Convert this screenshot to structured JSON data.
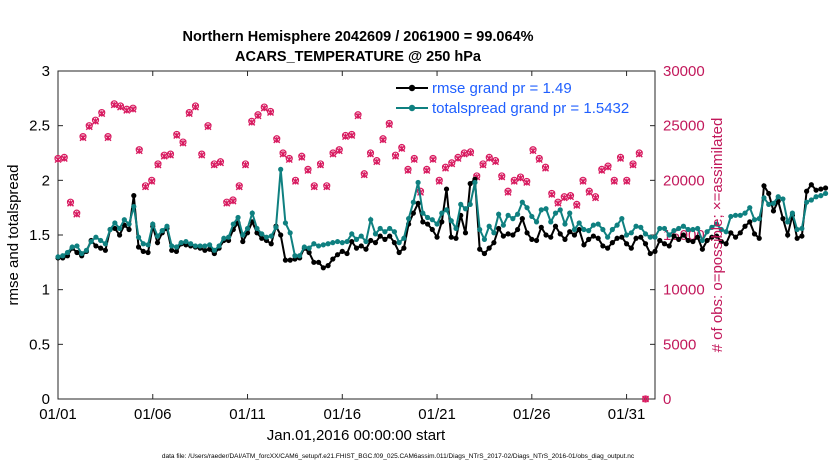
{
  "chart_data": {
    "type": "line",
    "title": [
      "Northern Hemisphere 2042609 / 2061900 = 99.064%",
      "ACARS_TEMPERATURE @ 250 hPa"
    ],
    "xlabel": "Jan.01,2016 00:00:00 start",
    "ylabel": "rmse and totalspread",
    "ylabel_right": "# of obs: o=possible; ×=assimilated",
    "footer": "data file: /Users/raeder/DAI/ATM_forcXX/CAM6_setup/f.e21.FHIST_BGC.f09_025.CAM6assim.011/Diags_NTrS_2017-02/Diags_NTrS_2016-01/obs_diag_output.nc",
    "xlim": [
      0,
      31.5
    ],
    "ylim": [
      0,
      3
    ],
    "ylim_right": [
      0,
      30000
    ],
    "x_ticks": [
      0,
      5,
      10,
      15,
      20,
      25,
      30
    ],
    "x_tick_labels": [
      "01/01",
      "01/06",
      "01/11",
      "01/16",
      "01/21",
      "01/26",
      "01/31"
    ],
    "y_ticks": [
      "0",
      "0.5",
      "1",
      "1.5",
      "2",
      "2.5",
      "3"
    ],
    "y_ticks_right": [
      "0",
      "5000",
      "10000",
      "15000",
      "20000",
      "25000",
      "30000"
    ],
    "x_step_days": 0.25,
    "series": [
      {
        "name": "rmse grand pr = 1.49",
        "color": "#000000",
        "values": [
          1.29,
          1.29,
          1.31,
          1.38,
          1.34,
          1.31,
          1.35,
          1.45,
          1.4,
          1.38,
          1.36,
          1.55,
          1.56,
          1.5,
          1.59,
          1.55,
          1.86,
          1.39,
          1.35,
          1.34,
          1.58,
          1.43,
          1.52,
          1.56,
          1.36,
          1.35,
          1.42,
          1.41,
          1.4,
          1.39,
          1.38,
          1.36,
          1.37,
          1.33,
          1.38,
          1.45,
          1.45,
          1.55,
          1.61,
          1.44,
          1.52,
          1.62,
          1.52,
          1.47,
          1.45,
          1.42,
          1.58,
          1.5,
          1.27,
          1.27,
          1.28,
          1.29,
          1.38,
          1.34,
          1.25,
          1.25,
          1.2,
          1.22,
          1.28,
          1.32,
          1.35,
          1.33,
          1.44,
          1.38,
          1.4,
          1.37,
          1.45,
          1.43,
          1.49,
          1.46,
          1.49,
          1.43,
          1.34,
          1.38,
          1.6,
          1.7,
          1.79,
          1.62,
          1.6,
          1.55,
          1.48,
          1.62,
          1.92,
          1.48,
          1.47,
          1.68,
          1.52,
          1.97,
          2.01,
          1.37,
          1.33,
          1.38,
          1.43,
          1.56,
          1.49,
          1.51,
          1.5,
          1.55,
          1.65,
          1.52,
          1.46,
          1.45,
          1.57,
          1.5,
          1.48,
          1.58,
          1.51,
          1.46,
          1.53,
          1.5,
          1.55,
          1.41,
          1.46,
          1.49,
          1.47,
          1.4,
          1.38,
          1.43,
          1.47,
          1.48,
          1.42,
          1.38,
          1.47,
          1.48,
          1.42,
          1.33,
          1.35,
          1.45,
          1.42,
          1.4,
          1.49,
          1.46,
          1.5,
          1.45,
          1.44,
          1.48,
          1.37,
          1.45,
          1.48,
          1.49,
          1.44,
          1.42,
          1.52,
          1.48,
          1.52,
          1.58,
          1.62,
          1.51,
          1.47,
          1.95,
          1.88,
          1.72,
          1.81,
          1.65,
          1.5,
          1.68,
          1.47,
          1.49,
          1.9,
          1.96,
          1.91,
          1.92,
          1.93
        ]
      },
      {
        "name": "totalspread grand pr = 1.5432",
        "color": "#0f8080",
        "values": [
          1.3,
          1.31,
          1.34,
          1.39,
          1.4,
          1.33,
          1.36,
          1.44,
          1.48,
          1.45,
          1.42,
          1.55,
          1.61,
          1.56,
          1.64,
          1.6,
          1.76,
          1.48,
          1.42,
          1.41,
          1.6,
          1.49,
          1.54,
          1.58,
          1.4,
          1.39,
          1.43,
          1.44,
          1.42,
          1.4,
          1.4,
          1.4,
          1.41,
          1.36,
          1.4,
          1.47,
          1.48,
          1.6,
          1.66,
          1.5,
          1.56,
          1.7,
          1.56,
          1.51,
          1.48,
          1.49,
          1.57,
          2.1,
          1.61,
          1.52,
          1.31,
          1.31,
          1.39,
          1.38,
          1.42,
          1.4,
          1.41,
          1.42,
          1.43,
          1.44,
          1.43,
          1.44,
          1.51,
          1.46,
          1.49,
          1.44,
          1.64,
          1.51,
          1.56,
          1.53,
          1.56,
          1.53,
          1.43,
          1.47,
          1.65,
          1.8,
          1.98,
          1.7,
          1.66,
          1.64,
          1.6,
          1.7,
          1.73,
          1.63,
          1.56,
          1.78,
          1.74,
          1.78,
          1.98,
          1.55,
          1.46,
          1.58,
          1.52,
          1.69,
          1.59,
          1.68,
          1.65,
          1.69,
          1.8,
          1.75,
          1.67,
          1.62,
          1.73,
          1.74,
          1.62,
          1.7,
          1.73,
          1.6,
          1.7,
          1.55,
          1.61,
          1.55,
          1.54,
          1.59,
          1.6,
          1.55,
          1.48,
          1.55,
          1.59,
          1.65,
          1.5,
          1.52,
          1.58,
          1.57,
          1.51,
          1.48,
          1.48,
          1.56,
          1.56,
          1.5,
          1.54,
          1.56,
          1.58,
          1.55,
          1.55,
          1.56,
          1.45,
          1.53,
          1.57,
          1.6,
          1.55,
          1.53,
          1.67,
          1.68,
          1.68,
          1.7,
          1.75,
          1.64,
          1.65,
          1.84,
          1.78,
          1.79,
          1.85,
          1.83,
          1.62,
          1.7,
          1.55,
          1.56,
          1.8,
          1.82,
          1.85,
          1.86,
          1.88
        ]
      }
    ],
    "obs_possible": [
      22000,
      22100,
      18000,
      17000,
      24000,
      25000,
      25500,
      26200,
      24000,
      27000,
      26800,
      26500,
      26600,
      22800,
      19500,
      20000,
      21500,
      22300,
      22400,
      24200,
      23500,
      26200,
      26800,
      22400,
      25000,
      21500,
      21700,
      18000,
      18200,
      19500,
      21500,
      25400,
      26000,
      26700,
      26300,
      23800,
      22500,
      22000,
      20000,
      22200,
      21000,
      19500,
      21500,
      19500,
      22500,
      22800,
      24100,
      24200,
      26000,
      20600,
      22500,
      21800,
      23800,
      25200,
      22300,
      23000,
      21000,
      22000,
      19000,
      21000,
      22000,
      20000,
      21200,
      21600,
      22100,
      22500,
      22600,
      20400,
      21500,
      22100,
      21800,
      20400,
      19000,
      20000,
      20300,
      19900,
      22800,
      22000,
      21200,
      18800,
      18000,
      18500,
      18600,
      17800,
      20000,
      19000,
      18500,
      21000,
      21300,
      20000,
      22100,
      20000,
      21500,
      22500,
      0
    ],
    "obs_assimilated": [
      21900,
      22000,
      17900,
      16900,
      23900,
      24900,
      25400,
      26100,
      23900,
      26900,
      26700,
      26400,
      26500,
      22700,
      19400,
      19900,
      21400,
      22200,
      22300,
      24100,
      23400,
      26100,
      26700,
      22300,
      24900,
      21400,
      21600,
      17900,
      18100,
      19400,
      21400,
      25300,
      25900,
      26600,
      26200,
      23700,
      22400,
      21900,
      19900,
      22100,
      20900,
      19400,
      21400,
      19400,
      22400,
      22700,
      24000,
      24100,
      25900,
      20500,
      22400,
      21700,
      23700,
      25100,
      22200,
      22900,
      20900,
      21900,
      18900,
      20900,
      21900,
      19900,
      21100,
      21500,
      22000,
      22400,
      22500,
      20300,
      21400,
      22000,
      21700,
      20300,
      18900,
      19900,
      20200,
      19800,
      22700,
      21900,
      21100,
      18700,
      17900,
      18400,
      18500,
      17700,
      19900,
      18900,
      18400,
      20900,
      21200,
      19900,
      22000,
      19900,
      21400,
      22400,
      0
    ]
  }
}
